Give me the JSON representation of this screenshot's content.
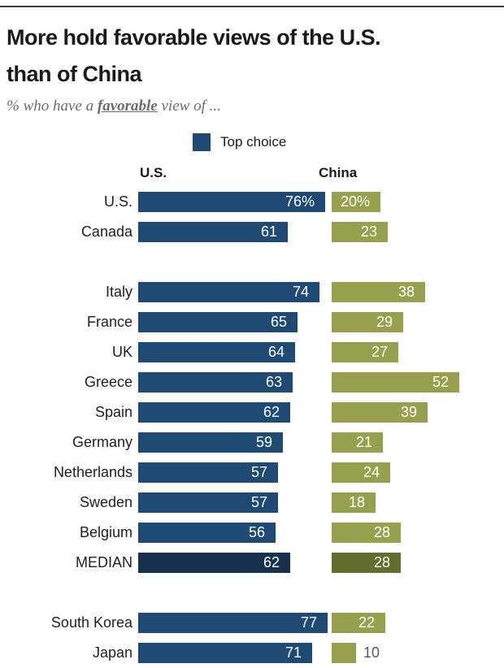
{
  "header": {
    "title_lines": [
      "More hold favorable views of the U.S.",
      "than of China"
    ],
    "subtitle_prefix": "% who have a ",
    "subtitle_emphasis": "favorable",
    "subtitle_suffix": " view of ..."
  },
  "legend": {
    "label": "Top choice",
    "swatch_color": "#1e4a74"
  },
  "columns": {
    "us": "U.S.",
    "china": "China"
  },
  "colors": {
    "us_bar": "#1e4a74",
    "china_bar": "#98a04e",
    "us_bar_median": "#17304e",
    "china_bar_median": "#636d2d",
    "outside_value_text": "#58595b",
    "inside_value_text": "#ffffff"
  },
  "rows": [
    {
      "label": "U.S.",
      "us": 76,
      "cn": 20,
      "us_text": "76%",
      "cn_text": "20%"
    },
    {
      "label": "Canada",
      "us": 61,
      "cn": 23,
      "us_text": "61",
      "cn_text": "23"
    },
    {
      "spacer": true
    },
    {
      "label": "Italy",
      "us": 74,
      "cn": 38,
      "us_text": "74",
      "cn_text": "38"
    },
    {
      "label": "France",
      "us": 65,
      "cn": 29,
      "us_text": "65",
      "cn_text": "29"
    },
    {
      "label": "UK",
      "us": 64,
      "cn": 27,
      "us_text": "64",
      "cn_text": "27"
    },
    {
      "label": "Greece",
      "us": 63,
      "cn": 52,
      "us_text": "63",
      "cn_text": "52"
    },
    {
      "label": "Spain",
      "us": 62,
      "cn": 39,
      "us_text": "62",
      "cn_text": "39"
    },
    {
      "label": "Germany",
      "us": 59,
      "cn": 21,
      "us_text": "59",
      "cn_text": "21"
    },
    {
      "label": "Netherlands",
      "us": 57,
      "cn": 24,
      "us_text": "57",
      "cn_text": "24"
    },
    {
      "label": "Sweden",
      "us": 57,
      "cn": 18,
      "us_text": "57",
      "cn_text": "18"
    },
    {
      "label": "Belgium",
      "us": 56,
      "cn": 28,
      "us_text": "56",
      "cn_text": "28"
    },
    {
      "label": "MEDIAN",
      "us": 62,
      "cn": 28,
      "us_text": "62",
      "cn_text": "28",
      "median": true
    },
    {
      "spacer": true
    },
    {
      "label": "South Korea",
      "us": 77,
      "cn": 22,
      "us_text": "77",
      "cn_text": "22"
    },
    {
      "label": "Japan",
      "us": 71,
      "cn": 10,
      "us_text": "71",
      "cn_text": "10",
      "cn_outside": true
    }
  ],
  "chart_data": {
    "type": "bar",
    "orientation": "horizontal",
    "title": "More hold favorable views of the U.S. than of China",
    "subtitle": "% who have a favorable view of ...",
    "legend": [
      "Top choice"
    ],
    "categories": [
      "U.S.",
      "Canada",
      "Italy",
      "France",
      "UK",
      "Greece",
      "Spain",
      "Germany",
      "Netherlands",
      "Sweden",
      "Belgium",
      "MEDIAN",
      "South Korea",
      "Japan"
    ],
    "series": [
      {
        "name": "U.S.",
        "values": [
          76,
          61,
          74,
          65,
          64,
          63,
          62,
          59,
          57,
          57,
          56,
          62,
          77,
          71
        ]
      },
      {
        "name": "China",
        "values": [
          20,
          23,
          38,
          29,
          27,
          52,
          39,
          21,
          24,
          18,
          28,
          28,
          22,
          10
        ]
      }
    ],
    "unit": "%",
    "xlim": [
      0,
      100
    ],
    "grid": false,
    "notes": "MEDIAN row drawn in darker shades; Japan China value labeled outside bar; chart cropped at bottom mid-Japan row"
  }
}
